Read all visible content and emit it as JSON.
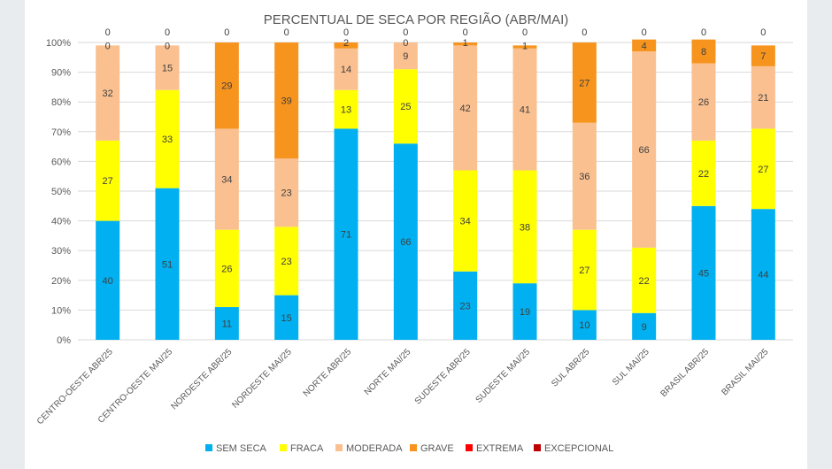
{
  "chart_data": {
    "type": "bar",
    "stacked": true,
    "title": "PERCENTUAL DE SECA POR REGIÃO (ABR/MAI)",
    "ylim": [
      0,
      100
    ],
    "yticks": [
      "0%",
      "10%",
      "20%",
      "30%",
      "40%",
      "50%",
      "60%",
      "70%",
      "80%",
      "90%",
      "100%"
    ],
    "grid": true,
    "legend_position": "bottom",
    "categories": [
      "CENTRO-OESTE ABR/25",
      "CENTRO-OESTE MAI/25",
      "NORDESTE ABR/25",
      "NORDESTE MAI/25",
      "NORTE ABR/25",
      "NORTE MAI/25",
      "SUDESTE ABR/25",
      "SUDESTE MAI/25",
      "SUL ABR/25",
      "SUL MAI/25",
      "BRASIL ABR/25",
      "BRASIL MAI/25"
    ],
    "series": [
      {
        "name": "SEM SECA",
        "color": "#00b0f0",
        "values": [
          40,
          51,
          11,
          15,
          71,
          66,
          23,
          19,
          10,
          9,
          45,
          44
        ]
      },
      {
        "name": "FRACA",
        "color": "#ffff00",
        "values": [
          27,
          33,
          26,
          23,
          13,
          25,
          34,
          38,
          27,
          22,
          22,
          27
        ]
      },
      {
        "name": "MODERADA",
        "color": "#fac090",
        "values": [
          32,
          15,
          34,
          23,
          14,
          9,
          42,
          41,
          36,
          66,
          26,
          21
        ]
      },
      {
        "name": "GRAVE",
        "color": "#f7941d",
        "values": [
          0,
          0,
          29,
          39,
          2,
          0,
          1,
          1,
          27,
          4,
          8,
          7
        ]
      },
      {
        "name": "EXTREMA",
        "color": "#ff0000",
        "values": [
          0,
          0,
          0,
          0,
          0,
          0,
          0,
          0,
          0,
          0,
          0,
          0
        ]
      },
      {
        "name": "EXCEPCIONAL",
        "color": "#c00000",
        "values": [
          0,
          0,
          0,
          0,
          0,
          0,
          0,
          0,
          0,
          0,
          0,
          0
        ]
      }
    ]
  }
}
